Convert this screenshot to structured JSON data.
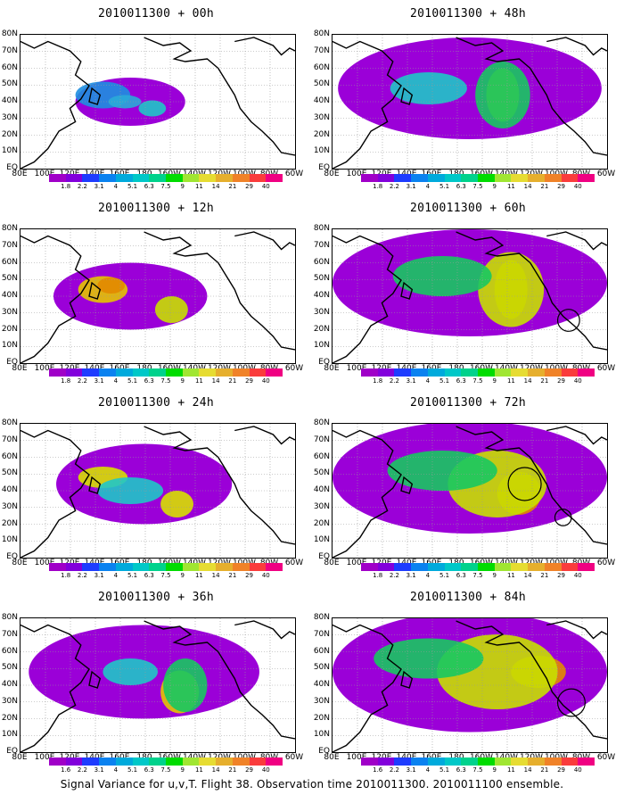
{
  "panels": [
    {
      "title": "2010011300 + 00h",
      "blobs": [
        [
          0.3,
          0.45,
          0.1,
          0.1,
          "#1e8fe0"
        ],
        [
          0.38,
          0.5,
          0.06,
          0.05,
          "#2aaad8"
        ],
        [
          0.48,
          0.55,
          0.05,
          0.06,
          "#1fc6c8"
        ]
      ],
      "purple": [
        [
          0.4,
          0.5,
          0.2,
          0.18
        ]
      ],
      "circles": []
    },
    {
      "title": "2010011300 + 12h",
      "blobs": [
        [
          0.3,
          0.45,
          0.09,
          0.1,
          "#e6c400"
        ],
        [
          0.55,
          0.6,
          0.06,
          0.1,
          "#c8e000"
        ],
        [
          0.33,
          0.42,
          0.05,
          0.06,
          "#e28a00"
        ]
      ],
      "purple": [
        [
          0.4,
          0.5,
          0.28,
          0.25
        ]
      ],
      "circles": []
    },
    {
      "title": "2010011300 + 24h",
      "blobs": [
        [
          0.3,
          0.4,
          0.09,
          0.08,
          "#d8e000"
        ],
        [
          0.57,
          0.6,
          0.06,
          0.1,
          "#d8e000"
        ],
        [
          0.4,
          0.5,
          0.12,
          0.1,
          "#1fc6c8"
        ]
      ],
      "purple": [
        [
          0.45,
          0.45,
          0.32,
          0.3
        ]
      ],
      "circles": []
    },
    {
      "title": "2010011300 + 36h",
      "blobs": [
        [
          0.58,
          0.55,
          0.07,
          0.16,
          "#e6c400"
        ],
        [
          0.6,
          0.5,
          0.08,
          0.2,
          "#17c860"
        ],
        [
          0.4,
          0.4,
          0.1,
          0.1,
          "#1fc6c8"
        ]
      ],
      "purple": [
        [
          0.45,
          0.4,
          0.42,
          0.35
        ]
      ],
      "circles": []
    },
    {
      "title": "2010011300 + 48h",
      "blobs": [
        [
          0.62,
          0.45,
          0.06,
          0.2,
          "#e6c400"
        ],
        [
          0.62,
          0.45,
          0.1,
          0.25,
          "#17c860"
        ],
        [
          0.35,
          0.4,
          0.14,
          0.12,
          "#1fc6c8"
        ]
      ],
      "purple": [
        [
          0.5,
          0.4,
          0.48,
          0.38
        ]
      ],
      "circles": []
    },
    {
      "title": "2010011300 + 60h",
      "blobs": [
        [
          0.65,
          0.45,
          0.06,
          0.22,
          "#e28a00"
        ],
        [
          0.65,
          0.45,
          0.12,
          0.28,
          "#c8e000"
        ],
        [
          0.4,
          0.35,
          0.18,
          0.15,
          "#17c860"
        ]
      ],
      "purple": [
        [
          0.5,
          0.4,
          0.5,
          0.4
        ]
      ],
      "circles": [
        [
          0.86,
          0.68,
          0.04
        ]
      ]
    },
    {
      "title": "2010011300 + 72h",
      "blobs": [
        [
          0.68,
          0.52,
          0.08,
          0.16,
          "#e28a00"
        ],
        [
          0.6,
          0.45,
          0.18,
          0.25,
          "#c8e000"
        ],
        [
          0.4,
          0.35,
          0.2,
          0.15,
          "#17c860"
        ]
      ],
      "purple": [
        [
          0.5,
          0.4,
          0.5,
          0.42
        ]
      ],
      "circles": [
        [
          0.7,
          0.45,
          0.06
        ],
        [
          0.84,
          0.7,
          0.03
        ]
      ]
    },
    {
      "title": "2010011300 + 84h",
      "blobs": [
        [
          0.75,
          0.4,
          0.1,
          0.12,
          "#e28a00"
        ],
        [
          0.6,
          0.4,
          0.22,
          0.28,
          "#c8e000"
        ],
        [
          0.35,
          0.3,
          0.2,
          0.15,
          "#17c860"
        ]
      ],
      "purple": [
        [
          0.5,
          0.4,
          0.5,
          0.45
        ]
      ],
      "circles": [
        [
          0.87,
          0.63,
          0.05
        ]
      ]
    }
  ],
  "lat_labels": [
    "80N",
    "70N",
    "60N",
    "50N",
    "40N",
    "30N",
    "20N",
    "10N",
    "EQ"
  ],
  "lon_labels": [
    "80E",
    "100E",
    "120E",
    "140E",
    "160E",
    "180",
    "160W",
    "140W",
    "120W",
    "100W",
    "80W",
    "60W"
  ],
  "colorbar": {
    "labels": [
      "1.8",
      "2.2",
      "3.1",
      "4",
      "5.1",
      "6.3",
      "7.5",
      "9",
      "11",
      "14",
      "21",
      "29",
      "40"
    ],
    "labels_84h": [
      "1.6",
      "2.2",
      "3.1",
      "4",
      "5.1",
      "6.3",
      "7.5",
      "9",
      "11",
      "14",
      "21",
      "29",
      "40"
    ],
    "labels_36h": [
      "1.6",
      "2.2",
      "3.1",
      "4",
      "5.1",
      "6.3",
      "7.5",
      "9",
      "11",
      "14",
      "21",
      "29",
      "40"
    ],
    "colors": [
      "#a000c8",
      "#8200dc",
      "#1e3cff",
      "#0a82f0",
      "#00aadc",
      "#00c8c8",
      "#00d28c",
      "#00dc00",
      "#a0e632",
      "#e6dc32",
      "#e6af2d",
      "#f08228",
      "#fa3c3c",
      "#f00082"
    ]
  },
  "caption": "Signal Variance for u,v,T. Flight 38. Observation time 2010011300. 2010011100 ensemble."
}
